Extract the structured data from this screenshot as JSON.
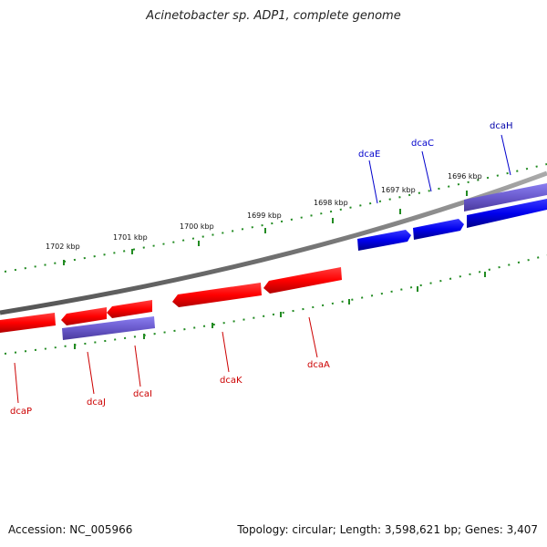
{
  "title": "Acinetobacter sp. ADP1, complete genome",
  "footer": {
    "accession": "Accession: NC_005966",
    "summary": "Topology: circular; Length: 3,598,621 bp; Genes: 3,407"
  },
  "ticks": [
    "1696 kbp",
    "1697 kbp",
    "1698 kbp",
    "1699 kbp",
    "1700 kbp",
    "1701 kbp",
    "1702 kbp"
  ],
  "genes_forward": [
    {
      "name": "dcaH",
      "color": "#000080"
    },
    {
      "name": "dcaC",
      "color": "#0000c0"
    },
    {
      "name": "dcaE",
      "color": "#0000c0"
    }
  ],
  "genes_reverse": [
    {
      "name": "dcaA",
      "color": "#c00000"
    },
    {
      "name": "dcaK",
      "color": "#c00000"
    },
    {
      "name": "dcaI",
      "color": "#c00000"
    },
    {
      "name": "dcaJ",
      "color": "#c00000"
    },
    {
      "name": "dcaP",
      "color": "#c00000"
    }
  ],
  "colors": {
    "backbone": "#777777",
    "tick": "#228B22",
    "forward_gene": "#0000ee",
    "forward_operon": "#6a5acd",
    "reverse_gene": "#ff0000",
    "reverse_operon": "#6a5acd"
  }
}
